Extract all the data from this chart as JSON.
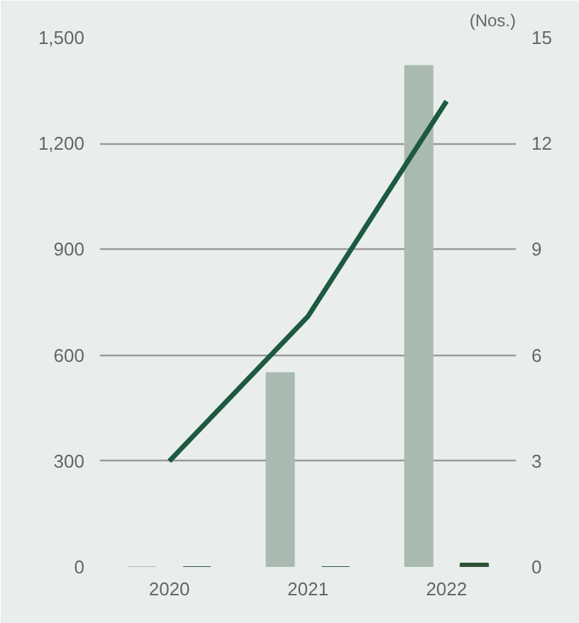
{
  "chart_data": {
    "type": "bar",
    "categories": [
      "2020",
      "2021",
      "2022"
    ],
    "y2label": "(Nos.)",
    "ylim": [
      0,
      1500
    ],
    "yticks": [
      {
        "value": 0,
        "label": "0"
      },
      {
        "value": 300,
        "label": "300"
      },
      {
        "value": 600,
        "label": "600"
      },
      {
        "value": 900,
        "label": "900"
      },
      {
        "value": 1200,
        "label": "1,200"
      },
      {
        "value": 1500,
        "label": "1,500"
      }
    ],
    "y2lim": [
      0,
      15
    ],
    "y2ticks": [
      0,
      3,
      6,
      9,
      12,
      15
    ],
    "grid": "y",
    "series": [
      {
        "color": "#a9bbb1",
        "values": [
          0,
          550,
          1420
        ]
      },
      {
        "color": "#2e5233",
        "axis": "y2",
        "values": [
          0,
          0,
          0.1
        ]
      },
      {
        "type": "line",
        "color": "#1d5a40",
        "axis": "y2",
        "values": [
          3,
          7.1,
          13.2
        ]
      }
    ]
  }
}
